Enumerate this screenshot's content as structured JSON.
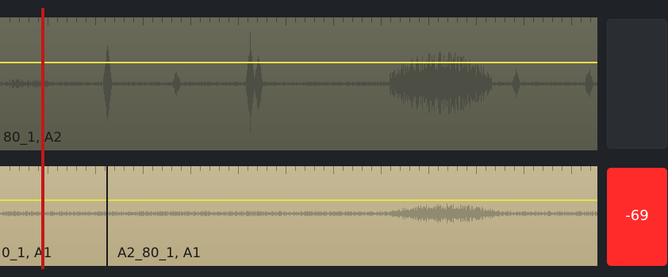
{
  "colors": {
    "background": "#1f2226",
    "track_a2_top": "#6a6a59",
    "track_a2_bottom": "#595a4b",
    "track_a1_top": "#c5b895",
    "track_a1_bottom": "#b8aa83",
    "waveform_a2": "#4d4f45",
    "waveform_a1": "#8f8a70",
    "volume_line": "#e6e04a",
    "playhead": "#c41818",
    "meter_peak": "#ff2b2b",
    "meter_idle": "#2a2e33"
  },
  "tracks": [
    {
      "id": "a2",
      "clips": [
        {
          "label": "80_1, A2"
        }
      ]
    },
    {
      "id": "a1",
      "clips": [
        {
          "label": "0_1, A1"
        },
        {
          "label": "A2_80_1, A1"
        }
      ]
    }
  ],
  "meters": [
    {
      "track": "a2",
      "value": ""
    },
    {
      "track": "a1",
      "value": "-69"
    }
  ],
  "icons": {
    "playhead": "playhead-line"
  }
}
